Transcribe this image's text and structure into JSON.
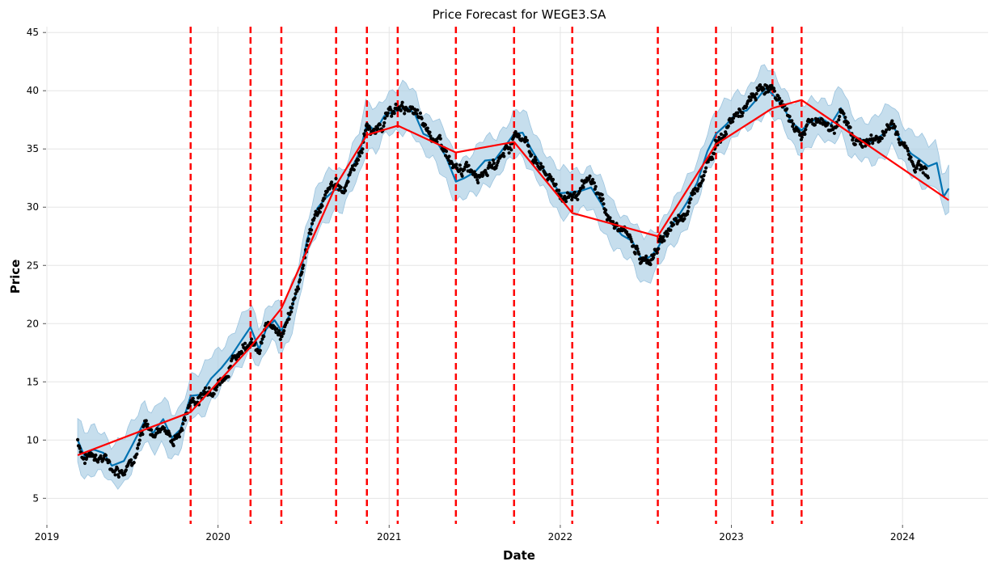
{
  "chart_data": {
    "type": "line",
    "title": "Price Forecast for WEGE3.SA",
    "xlabel": "Date",
    "ylabel": "Price",
    "xlim": [
      2019.0,
      2024.5
    ],
    "ylim": [
      2.8,
      45.5
    ],
    "grid": true,
    "x_ticks": [
      2019,
      2020,
      2021,
      2022,
      2023,
      2024
    ],
    "x_tick_labels": [
      "2019",
      "2020",
      "2021",
      "2022",
      "2023",
      "2024"
    ],
    "y_ticks": [
      5,
      10,
      15,
      20,
      25,
      30,
      35,
      40,
      45
    ],
    "y_tick_labels": [
      "5",
      "10",
      "15",
      "20",
      "25",
      "30",
      "35",
      "40",
      "45"
    ],
    "colors": {
      "forecast": "#0072B2",
      "uncertainty": "#a8cce4",
      "trend": "#ff0000",
      "changepoints": "#ff0000",
      "actual": "#000000",
      "grid": "#e5e5e5"
    },
    "changepoints": [
      2019.84,
      2020.19,
      2020.37,
      2020.69,
      2020.87,
      2021.05,
      2021.39,
      2021.73,
      2022.07,
      2022.57,
      2022.91,
      2023.24,
      2023.41
    ],
    "trend": {
      "x": [
        2019.18,
        2019.84,
        2020.19,
        2020.37,
        2020.69,
        2020.87,
        2021.05,
        2021.39,
        2021.73,
        2022.07,
        2022.57,
        2022.91,
        2023.24,
        2023.41,
        2024.27
      ],
      "y": [
        8.7,
        12.4,
        18.0,
        21.3,
        31.9,
        36.2,
        37.0,
        34.7,
        35.6,
        29.5,
        27.5,
        35.4,
        38.5,
        39.2,
        30.6
      ]
    },
    "forecast": {
      "x": [
        2019.18,
        2019.22,
        2019.27,
        2019.33,
        2019.38,
        2019.45,
        2019.5,
        2019.57,
        2019.62,
        2019.68,
        2019.73,
        2019.78,
        2019.84,
        2019.9,
        2019.96,
        2020.02,
        2020.08,
        2020.13,
        2020.19,
        2020.24,
        2020.28,
        2020.33,
        2020.37,
        2020.42,
        2020.47,
        2020.52,
        2020.58,
        2020.63,
        2020.69,
        2020.73,
        2020.78,
        2020.83,
        2020.87,
        2020.92,
        2020.97,
        2021.02,
        2021.05,
        2021.1,
        2021.15,
        2021.2,
        2021.27,
        2021.33,
        2021.39,
        2021.44,
        2021.5,
        2021.56,
        2021.62,
        2021.68,
        2021.73,
        2021.78,
        2021.83,
        2021.88,
        2021.94,
        2022.0,
        2022.07,
        2022.12,
        2022.18,
        2022.24,
        2022.3,
        2022.36,
        2022.42,
        2022.48,
        2022.53,
        2022.57,
        2022.63,
        2022.68,
        2022.74,
        2022.8,
        2022.86,
        2022.91,
        2022.97,
        2023.03,
        2023.09,
        2023.15,
        2023.2,
        2023.24,
        2023.3,
        2023.35,
        2023.41,
        2023.46,
        2023.52,
        2023.58,
        2023.64,
        2023.7,
        2023.76,
        2023.82,
        2023.88,
        2023.94,
        2024.0,
        2024.05,
        2024.1,
        2024.15,
        2024.2,
        2024.24,
        2024.27
      ],
      "y": [
        10.0,
        8.6,
        9.2,
        8.9,
        7.8,
        8.2,
        9.6,
        11.6,
        10.6,
        11.8,
        10.2,
        10.9,
        13.8,
        13.9,
        15.3,
        16.2,
        17.3,
        18.4,
        19.7,
        17.8,
        19.5,
        20.3,
        19.4,
        20.8,
        23.3,
        27.2,
        29.9,
        30.8,
        31.6,
        31.3,
        33.3,
        34.8,
        37.2,
        36.5,
        37.8,
        38.2,
        38.3,
        38.6,
        38.0,
        36.3,
        35.8,
        34.4,
        32.2,
        32.5,
        33.0,
        34.0,
        34.1,
        35.3,
        36.3,
        36.4,
        35.0,
        33.8,
        32.4,
        31.2,
        31.3,
        31.4,
        31.7,
        30.3,
        28.6,
        27.6,
        27.1,
        25.4,
        25.8,
        26.5,
        28.1,
        29.0,
        30.4,
        32.1,
        34.8,
        36.3,
        37.1,
        38.1,
        38.3,
        39.3,
        40.2,
        39.7,
        38.7,
        37.3,
        36.6,
        37.3,
        37.7,
        37.1,
        38.5,
        36.1,
        35.8,
        35.6,
        36.2,
        37.1,
        35.5,
        34.6,
        34.1,
        33.5,
        33.8,
        30.9,
        31.6
      ]
    },
    "actual_observed_range": {
      "x_start": 2019.18,
      "x_end": 2024.15
    }
  }
}
